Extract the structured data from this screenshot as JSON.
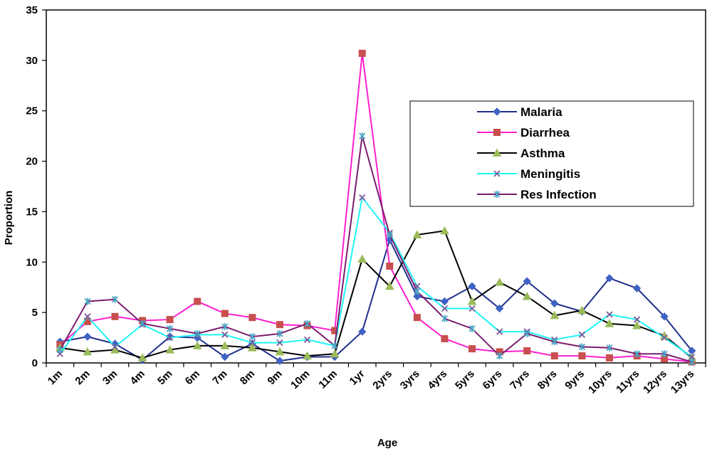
{
  "chart_data": {
    "type": "line",
    "title": "",
    "xlabel": "Age",
    "ylabel": "Proportion",
    "ylim": [
      0,
      35
    ],
    "yticks": [
      0,
      5,
      10,
      15,
      20,
      25,
      30,
      35
    ],
    "grid": false,
    "legend_position": "right",
    "categories": [
      "1m",
      "2m",
      "3m",
      "4m",
      "5m",
      "6m",
      "7m",
      "8m",
      "9m",
      "10m",
      "11m",
      "1yr",
      "2yrs",
      "3yrs",
      "4yrs",
      "5yrs",
      "6yrs",
      "7yrs",
      "8yrs",
      "9yrs",
      "10yrs",
      "11yrs",
      "12yrs",
      "13yrs"
    ],
    "series": [
      {
        "name": "Malaria",
        "color": "#1f2f8c",
        "marker": "diamond",
        "values": [
          2.1,
          2.6,
          1.9,
          0.3,
          2.6,
          2.5,
          0.6,
          1.9,
          0.2,
          0.6,
          0.6,
          3.1,
          12.2,
          6.6,
          6.1,
          7.6,
          5.4,
          8.1,
          5.9,
          5.1,
          8.4,
          7.4,
          4.6,
          1.2
        ]
      },
      {
        "name": "Diarrhea",
        "color": "#ff1fcf",
        "marker": "square",
        "values": [
          1.8,
          4.1,
          4.6,
          4.2,
          4.3,
          6.1,
          4.9,
          4.5,
          3.8,
          3.7,
          3.2,
          30.7,
          9.6,
          4.5,
          2.4,
          1.4,
          1.1,
          1.2,
          0.7,
          0.7,
          0.5,
          0.7,
          0.4,
          0.1
        ]
      },
      {
        "name": "Asthma",
        "color": "#000000",
        "marker": "triangle",
        "values": [
          1.5,
          1.1,
          1.3,
          0.5,
          1.3,
          1.7,
          1.7,
          1.5,
          1.1,
          0.7,
          0.9,
          10.3,
          7.6,
          12.7,
          13.1,
          6.1,
          8.0,
          6.6,
          4.7,
          5.2,
          3.9,
          3.7,
          2.7,
          0.5
        ]
      },
      {
        "name": "Meningitis",
        "color": "#1ff5f5",
        "marker": "x",
        "values": [
          0.9,
          4.6,
          1.6,
          3.8,
          2.5,
          2.8,
          2.8,
          2.0,
          2.0,
          2.3,
          1.7,
          16.4,
          12.9,
          7.6,
          5.4,
          5.4,
          3.1,
          3.1,
          2.3,
          2.8,
          4.8,
          4.3,
          2.5,
          0.6
        ]
      },
      {
        "name": "Res Infection",
        "color": "#7b1d6e",
        "marker": "star",
        "values": [
          1.3,
          6.1,
          6.3,
          3.9,
          3.4,
          2.9,
          3.6,
          2.6,
          2.9,
          3.9,
          1.7,
          22.5,
          12.7,
          7.1,
          4.4,
          3.4,
          0.7,
          2.9,
          2.1,
          1.6,
          1.5,
          0.9,
          0.9,
          0.1
        ]
      }
    ]
  }
}
